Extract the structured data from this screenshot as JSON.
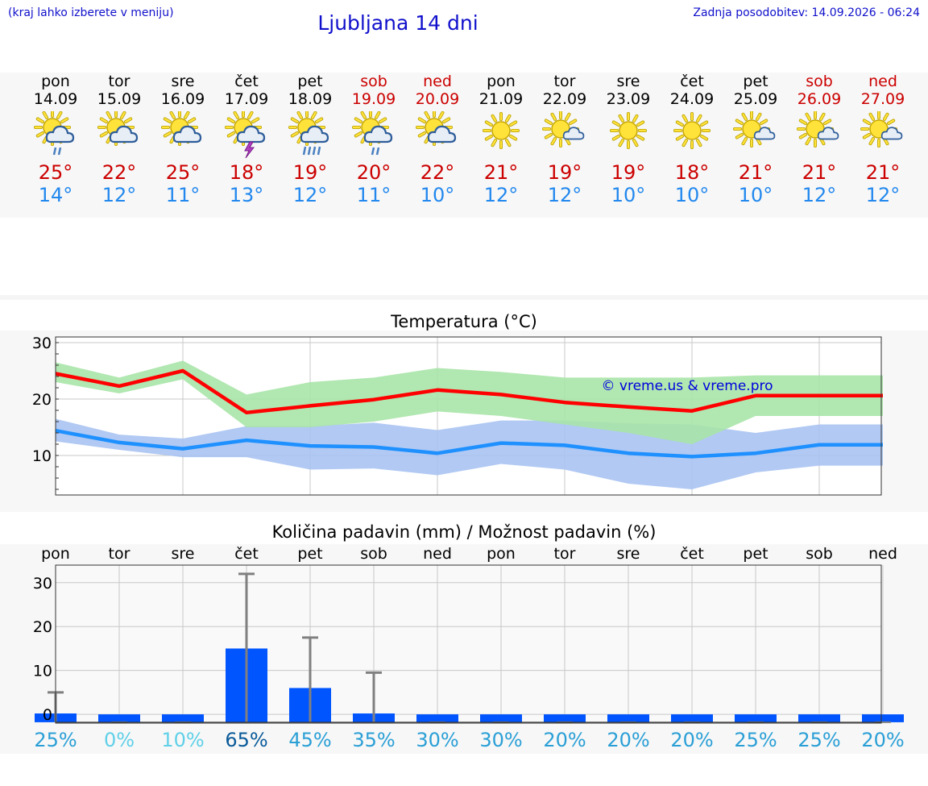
{
  "header": {
    "hint": "(kraj lahko izberete v meniju)",
    "title": "Ljubljana 14 dni",
    "updated": "Zadnja posodobitev: 14.09.2026 - 06:24"
  },
  "days": [
    {
      "name": "pon",
      "date": "14.09",
      "weekend": false,
      "icon": "sun-cloud-rain-icon",
      "tmax": "25°",
      "tmin": "14°"
    },
    {
      "name": "tor",
      "date": "15.09",
      "weekend": false,
      "icon": "sun-cloud-icon",
      "tmax": "22°",
      "tmin": "12°"
    },
    {
      "name": "sre",
      "date": "16.09",
      "weekend": false,
      "icon": "sun-cloud-icon",
      "tmax": "25°",
      "tmin": "11°"
    },
    {
      "name": "čet",
      "date": "17.09",
      "weekend": false,
      "icon": "sun-cloud-thunder-icon",
      "tmax": "18°",
      "tmin": "13°"
    },
    {
      "name": "pet",
      "date": "18.09",
      "weekend": false,
      "icon": "sun-cloud-heavy-rain-icon",
      "tmax": "19°",
      "tmin": "12°"
    },
    {
      "name": "sob",
      "date": "19.09",
      "weekend": true,
      "icon": "sun-cloud-rain-icon",
      "tmax": "20°",
      "tmin": "11°"
    },
    {
      "name": "ned",
      "date": "20.09",
      "weekend": true,
      "icon": "sun-cloud-icon",
      "tmax": "22°",
      "tmin": "10°"
    },
    {
      "name": "pon",
      "date": "21.09",
      "weekend": false,
      "icon": "sun-icon",
      "tmax": "21°",
      "tmin": "12°"
    },
    {
      "name": "tor",
      "date": "22.09",
      "weekend": false,
      "icon": "sun-small-cloud-icon",
      "tmax": "19°",
      "tmin": "12°"
    },
    {
      "name": "sre",
      "date": "23.09",
      "weekend": false,
      "icon": "sun-icon",
      "tmax": "19°",
      "tmin": "10°"
    },
    {
      "name": "čet",
      "date": "24.09",
      "weekend": false,
      "icon": "sun-icon",
      "tmax": "18°",
      "tmin": "10°"
    },
    {
      "name": "pet",
      "date": "25.09",
      "weekend": false,
      "icon": "sun-small-cloud-icon",
      "tmax": "21°",
      "tmin": "10°"
    },
    {
      "name": "sob",
      "date": "26.09",
      "weekend": true,
      "icon": "sun-small-cloud-icon",
      "tmax": "21°",
      "tmin": "12°"
    },
    {
      "name": "ned",
      "date": "27.09",
      "weekend": true,
      "icon": "sun-small-cloud-icon",
      "tmax": "21°",
      "tmin": "12°"
    }
  ],
  "colors": {
    "title_blue": "#1010cc",
    "max_red": "#cc0000",
    "min_blue": "#2288ee",
    "max_band": "#a9e4a9",
    "min_band": "#a9c3f2",
    "max_line": "#ff0000",
    "min_line": "#1e90ff",
    "bar": "#0055ff",
    "errbar": "#808080"
  },
  "chart_data": [
    {
      "type": "line",
      "title": "Temperatura (°C)",
      "watermark": "© vreme.us & vreme.pro",
      "ylim": [
        3,
        31
      ],
      "yticks": [
        10,
        20,
        30
      ],
      "x": [
        "14.09",
        "15.09",
        "16.09",
        "17.09",
        "18.09",
        "19.09",
        "20.09",
        "21.09",
        "22.09",
        "23.09",
        "24.09",
        "25.09",
        "26.09",
        "27.09"
      ],
      "series": [
        {
          "key": "max",
          "values": [
            24.5,
            22.3,
            25.0,
            17.6,
            18.8,
            19.9,
            21.6,
            20.8,
            19.4,
            18.6,
            17.9,
            20.6,
            20.6,
            20.6
          ],
          "low": [
            23.0,
            21.0,
            23.5,
            15.0,
            15.0,
            16.0,
            17.8,
            17.0,
            15.5,
            14.0,
            12.0,
            17.0,
            17.0,
            17.0
          ],
          "high": [
            26.5,
            23.8,
            26.8,
            20.8,
            23.0,
            23.8,
            25.5,
            24.8,
            23.8,
            23.8,
            23.8,
            24.2,
            24.2,
            24.2
          ]
        },
        {
          "key": "min",
          "values": [
            14.4,
            12.3,
            11.2,
            12.7,
            11.7,
            11.5,
            10.4,
            12.2,
            11.8,
            10.4,
            9.8,
            10.4,
            11.9,
            11.9
          ],
          "low": [
            12.5,
            11.0,
            9.7,
            9.7,
            7.5,
            7.7,
            6.5,
            8.5,
            7.5,
            5.0,
            4.0,
            7.0,
            8.2,
            8.2
          ],
          "high": [
            16.5,
            13.7,
            13.0,
            15.2,
            15.2,
            15.8,
            14.5,
            16.2,
            16.2,
            15.7,
            15.5,
            14.0,
            15.5,
            15.5
          ]
        }
      ],
      "grid": true
    },
    {
      "type": "bar",
      "title": "Količina padavin (mm) / Možnost padavin (%)",
      "ylim": [
        -2,
        34
      ],
      "yticks": [
        0,
        10,
        20,
        30
      ],
      "categories": [
        "pon",
        "tor",
        "sre",
        "čet",
        "pet",
        "sob",
        "ned",
        "pon",
        "tor",
        "sre",
        "čet",
        "pet",
        "sob",
        "ned"
      ],
      "values": [
        0.2,
        0,
        0,
        15,
        6,
        0.2,
        0,
        0,
        0,
        0,
        0,
        0,
        0,
        0
      ],
      "err_high": [
        5,
        0,
        0,
        32,
        17.5,
        9.5,
        0,
        0,
        0,
        0,
        0,
        0,
        0,
        0
      ],
      "chance": [
        "25%",
        "0%",
        "10%",
        "65%",
        "45%",
        "35%",
        "30%",
        "30%",
        "20%",
        "20%",
        "20%",
        "25%",
        "25%",
        "20%"
      ],
      "chance_colors": [
        "#2a9fd6",
        "#5fd0e8",
        "#5fd0e8",
        "#0a5a9a",
        "#2a9fd6",
        "#2a9fd6",
        "#2a9fd6",
        "#2a9fd6",
        "#2a9fd6",
        "#2a9fd6",
        "#2a9fd6",
        "#2a9fd6",
        "#2a9fd6",
        "#2a9fd6"
      ],
      "grid": true
    }
  ]
}
